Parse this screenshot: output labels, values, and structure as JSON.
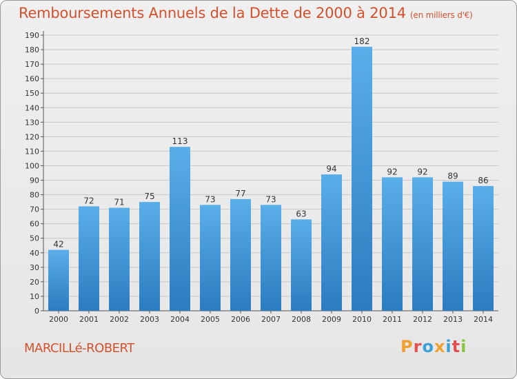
{
  "title": "Remboursements Annuels de la Dette de 2000 à 2014",
  "subtitle": "(en milliers d'€)",
  "city": "MARCILLé-ROBERT",
  "logo_text": "Proxiti",
  "colors": {
    "title": "#d2512c",
    "bar_top": "#5aaee8",
    "bar_bottom": "#2b7cc0",
    "grid": "#c8c8c8",
    "logo": [
      "#f0a030",
      "#e05050",
      "#3aa0d8",
      "#f0a030",
      "#3aa0d8",
      "#e05050",
      "#8cc63f"
    ]
  },
  "chart_data": {
    "type": "bar",
    "title": "Remboursements Annuels de la Dette de 2000 à 2014",
    "subtitle": "(en milliers d'€)",
    "categories": [
      "2000",
      "2001",
      "2002",
      "2003",
      "2004",
      "2005",
      "2006",
      "2007",
      "2008",
      "2009",
      "2010",
      "2011",
      "2012",
      "2013",
      "2014"
    ],
    "values": [
      42,
      72,
      71,
      75,
      113,
      73,
      77,
      73,
      63,
      94,
      182,
      92,
      92,
      89,
      86
    ],
    "ylim": [
      0,
      190
    ],
    "ytick_step": 10,
    "grid": true,
    "legend": "none"
  }
}
